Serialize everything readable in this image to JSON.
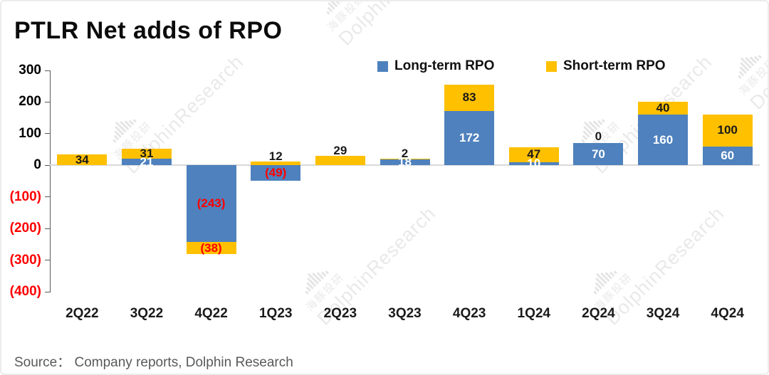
{
  "title": "PTLR Net adds of RPO",
  "source": "Source： Company reports, Dolphin Research",
  "legend": [
    {
      "label": "Long-term RPO",
      "color": "#4E81BD"
    },
    {
      "label": "Short-term RPO",
      "color": "#FFC000"
    }
  ],
  "watermark": {
    "cn": "海豚投研",
    "en": "DolphinResearch",
    "icon": "dolphin-sound-bars-icon"
  },
  "colors": {
    "long_term": "#4E81BD",
    "short_term": "#FFC000",
    "negative_label": "#FF0000",
    "axis": "#595959",
    "zero_gridline": "#D9D9D9",
    "source_text": "#595959"
  },
  "chart_data": {
    "type": "bar",
    "stacked": true,
    "title": "PTLR Net adds of RPO",
    "legend_position": "top",
    "grid": "zero-line-only",
    "ylim": [
      -400,
      300
    ],
    "categories": [
      "2Q22",
      "3Q22",
      "4Q22",
      "1Q23",
      "2Q23",
      "3Q23",
      "4Q23",
      "1Q24",
      "2Q24",
      "3Q24",
      "4Q24"
    ],
    "series": [
      {
        "name": "Long-term RPO",
        "color": "#4E81BD",
        "values": [
          0,
          21,
          -243,
          -49,
          0,
          18,
          172,
          10,
          70,
          160,
          60
        ],
        "labels": [
          "",
          "21",
          "(243)",
          "(49)",
          "",
          "18",
          "172",
          "10",
          "70",
          "160",
          "60"
        ]
      },
      {
        "name": "Short-term RPO",
        "color": "#FFC000",
        "values": [
          34,
          31,
          -38,
          12,
          29,
          2,
          83,
          47,
          0,
          40,
          100
        ],
        "labels": [
          "34",
          "31",
          "(38)",
          "12",
          "29",
          "2",
          "83",
          "47",
          "0",
          "40",
          "100"
        ]
      }
    ],
    "y_ticks": [
      {
        "value": 300,
        "label": "300",
        "color": "#000000"
      },
      {
        "value": 200,
        "label": "200",
        "color": "#000000"
      },
      {
        "value": 100,
        "label": "100",
        "color": "#000000"
      },
      {
        "value": 0,
        "label": "0",
        "color": "#000000"
      },
      {
        "value": -100,
        "label": "(100)",
        "color": "#FF0000"
      },
      {
        "value": -200,
        "label": "(200)",
        "color": "#FF0000"
      },
      {
        "value": -300,
        "label": "(300)",
        "color": "#FF0000"
      },
      {
        "value": -400,
        "label": "(400)",
        "color": "#FF0000"
      }
    ]
  }
}
